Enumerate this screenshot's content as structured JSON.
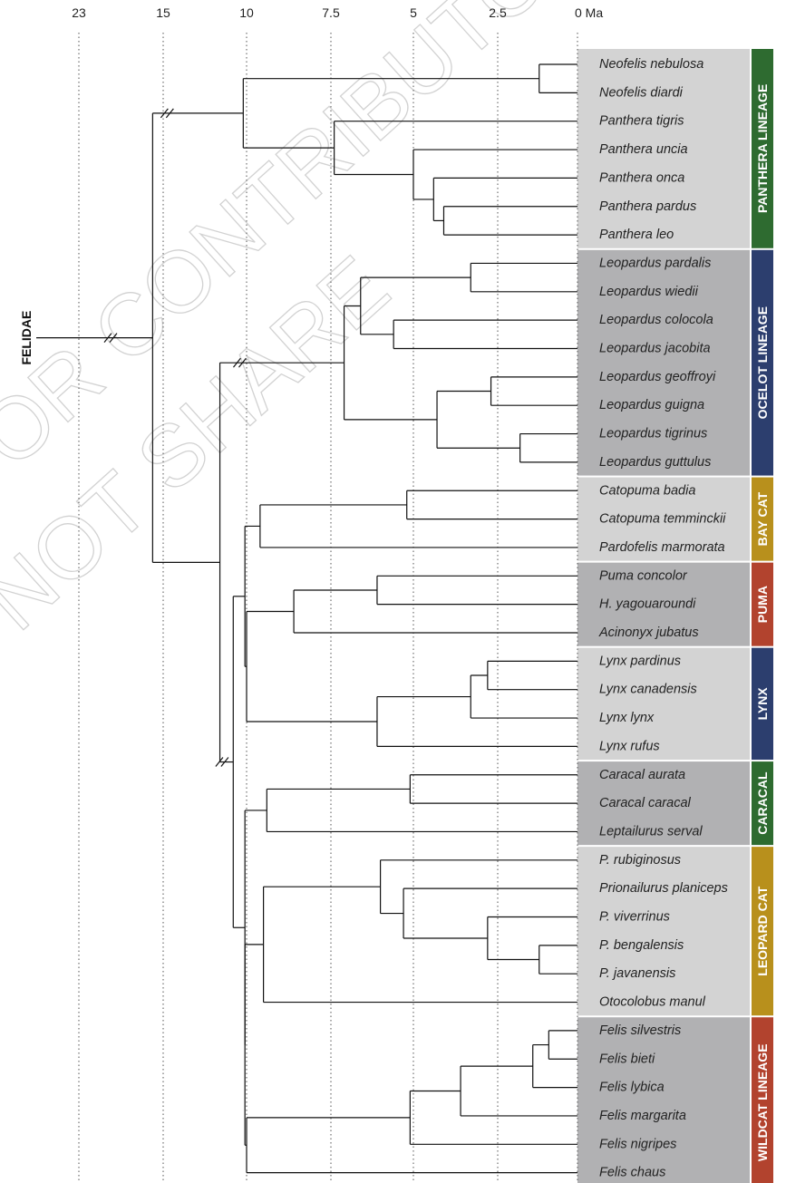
{
  "axis": {
    "ticks": [
      "23",
      "15",
      "10",
      "7.5",
      "5",
      "2.5",
      "0 Ma"
    ],
    "tick_values": [
      23,
      15,
      10,
      7.5,
      5,
      2.5,
      0
    ]
  },
  "root_label": "FELIDAE",
  "watermark": [
    "FOR CONTRIBUTORS",
    "NOT SHARE"
  ],
  "lineages": [
    {
      "name": "PANTHERA LINEAGE",
      "color": "#2e6b30",
      "bg": "#d3d3d3",
      "from": 0,
      "to": 6
    },
    {
      "name": "OCELOT LINEAGE",
      "color": "#2c3e6e",
      "bg": "#b1b1b3",
      "from": 7,
      "to": 14
    },
    {
      "name": "BAY CAT",
      "color": "#b8901c",
      "bg": "#d3d3d3",
      "from": 15,
      "to": 17
    },
    {
      "name": "PUMA",
      "color": "#b2432e",
      "bg": "#b1b1b3",
      "from": 18,
      "to": 20
    },
    {
      "name": "LYNX",
      "color": "#2c3e6e",
      "bg": "#d3d3d3",
      "from": 21,
      "to": 24
    },
    {
      "name": "CARACAL",
      "color": "#2e6b30",
      "bg": "#b1b1b3",
      "from": 25,
      "to": 27
    },
    {
      "name": "LEOPARD CAT",
      "color": "#b8901c",
      "bg": "#d3d3d3",
      "from": 28,
      "to": 33
    },
    {
      "name": "WILDCAT LINEAGE",
      "color": "#b2432e",
      "bg": "#b1b1b3",
      "from": 34,
      "to": 39
    }
  ],
  "taxa": [
    "Neofelis nebulosa",
    "Neofelis diardi",
    "Panthera tigris",
    "Panthera uncia",
    "Panthera onca",
    "Panthera pardus",
    "Panthera leo",
    "Leopardus pardalis",
    "Leopardus wiedii",
    "Leopardus colocola",
    "Leopardus jacobita",
    "Leopardus geoffroyi",
    "Leopardus guigna",
    "Leopardus tigrinus",
    "Leopardus guttulus",
    "Catopuma badia",
    "Catopuma temminckii",
    "Pardofelis marmorata",
    "Puma concolor",
    "H. yagouaroundi",
    "Acinonyx jubatus",
    "Lynx pardinus",
    "Lynx canadensis",
    "Lynx lynx",
    "Lynx rufus",
    "Caracal aurata",
    "Caracal caracal",
    "Leptailurus serval",
    "P. rubiginosus",
    "Prionailurus planiceps",
    "P. viverrinus",
    "P. bengalensis",
    "P. javanensis",
    "Otocolobus manul",
    "Felis silvestris",
    "Felis bieti",
    "Felis lybica",
    "Felis margarita",
    "Felis nigripes",
    "Felis chaus"
  ],
  "tree": {
    "age": 16.0,
    "children": [
      {
        "age": 10.2,
        "broken": true,
        "children": [
          {
            "age": 1.2,
            "children": [
              {
                "tip": 0
              },
              {
                "tip": 1
              }
            ]
          },
          {
            "age": 7.4,
            "children": [
              {
                "tip": 2
              },
              {
                "age": 5.0,
                "children": [
                  {
                    "tip": 3
                  },
                  {
                    "age": 4.4,
                    "children": [
                      {
                        "tip": 4
                      },
                      {
                        "age": 4.1,
                        "children": [
                          {
                            "tip": 5
                          },
                          {
                            "tip": 6
                          }
                        ]
                      }
                    ]
                  }
                ]
              }
            ]
          }
        ]
      },
      {
        "age": 11.6,
        "children": [
          {
            "age": 7.1,
            "broken": true,
            "children": [
              {
                "age": 6.6,
                "children": [
                  {
                    "age": 3.3,
                    "children": [
                      {
                        "tip": 7
                      },
                      {
                        "tip": 8
                      }
                    ]
                  },
                  {
                    "age": 5.6,
                    "children": [
                      {
                        "tip": 9
                      },
                      {
                        "tip": 10
                      }
                    ]
                  }
                ]
              },
              {
                "age": 4.3,
                "children": [
                  {
                    "age": 2.7,
                    "children": [
                      {
                        "tip": 11
                      },
                      {
                        "tip": 12
                      }
                    ]
                  },
                  {
                    "age": 1.8,
                    "children": [
                      {
                        "tip": 13
                      },
                      {
                        "tip": 14
                      }
                    ]
                  }
                ]
              }
            ]
          },
          {
            "age": 10.8,
            "broken": true,
            "children": [
              {
                "age": 10.1,
                "children": [
                  {
                    "age": 9.6,
                    "children": [
                      {
                        "age": 5.2,
                        "children": [
                          {
                            "tip": 15
                          },
                          {
                            "tip": 16
                          }
                        ]
                      },
                      {
                        "tip": 17
                      }
                    ]
                  },
                  {
                    "age": 10.0,
                    "children": [
                      {
                        "age": 8.6,
                        "children": [
                          {
                            "age": 6.1,
                            "children": [
                              {
                                "tip": 18
                              },
                              {
                                "tip": 19
                              }
                            ]
                          },
                          {
                            "tip": 20
                          }
                        ]
                      },
                      {
                        "age": 6.1,
                        "children": [
                          {
                            "age": 3.3,
                            "children": [
                              {
                                "age": 2.8,
                                "children": [
                                  {
                                    "tip": 21
                                  },
                                  {
                                    "tip": 22
                                  }
                                ]
                              },
                              {
                                "tip": 23
                              }
                            ]
                          },
                          {
                            "tip": 24
                          }
                        ]
                      }
                    ]
                  }
                ]
              },
              {
                "age": 10.1,
                "children": [
                  {
                    "age": 9.4,
                    "children": [
                      {
                        "age": 5.1,
                        "children": [
                          {
                            "tip": 25
                          },
                          {
                            "tip": 26
                          }
                        ]
                      },
                      {
                        "tip": 27
                      }
                    ]
                  },
                  {
                    "age": 10.1,
                    "children": [
                      {
                        "age": 9.5,
                        "children": [
                          {
                            "age": 6.0,
                            "children": [
                              {
                                "tip": 28
                              },
                              {
                                "age": 5.3,
                                "children": [
                                  {
                                    "tip": 29
                                  },
                                  {
                                    "age": 2.8,
                                    "children": [
                                      {
                                        "tip": 30
                                      },
                                      {
                                        "age": 1.2,
                                        "children": [
                                          {
                                            "tip": 31
                                          },
                                          {
                                            "tip": 32
                                          }
                                        ]
                                      }
                                    ]
                                  }
                                ]
                              }
                            ]
                          },
                          {
                            "tip": 33
                          }
                        ]
                      },
                      {
                        "age": 10.0,
                        "children": [
                          {
                            "tip": 39
                          },
                          {
                            "age": 5.1,
                            "children": [
                              {
                                "tip": 38
                              },
                              {
                                "age": 3.6,
                                "children": [
                                  {
                                    "tip": 37
                                  },
                                  {
                                    "age": 1.4,
                                    "children": [
                                      {
                                        "tip": 36
                                      },
                                      {
                                        "age": 0.9,
                                        "children": [
                                          {
                                            "tip": 34
                                          },
                                          {
                                            "tip": 35
                                          }
                                        ]
                                      }
                                    ]
                                  }
                                ]
                              }
                            ]
                          }
                        ]
                      }
                    ]
                  }
                ]
              }
            ]
          }
        ]
      }
    ]
  }
}
